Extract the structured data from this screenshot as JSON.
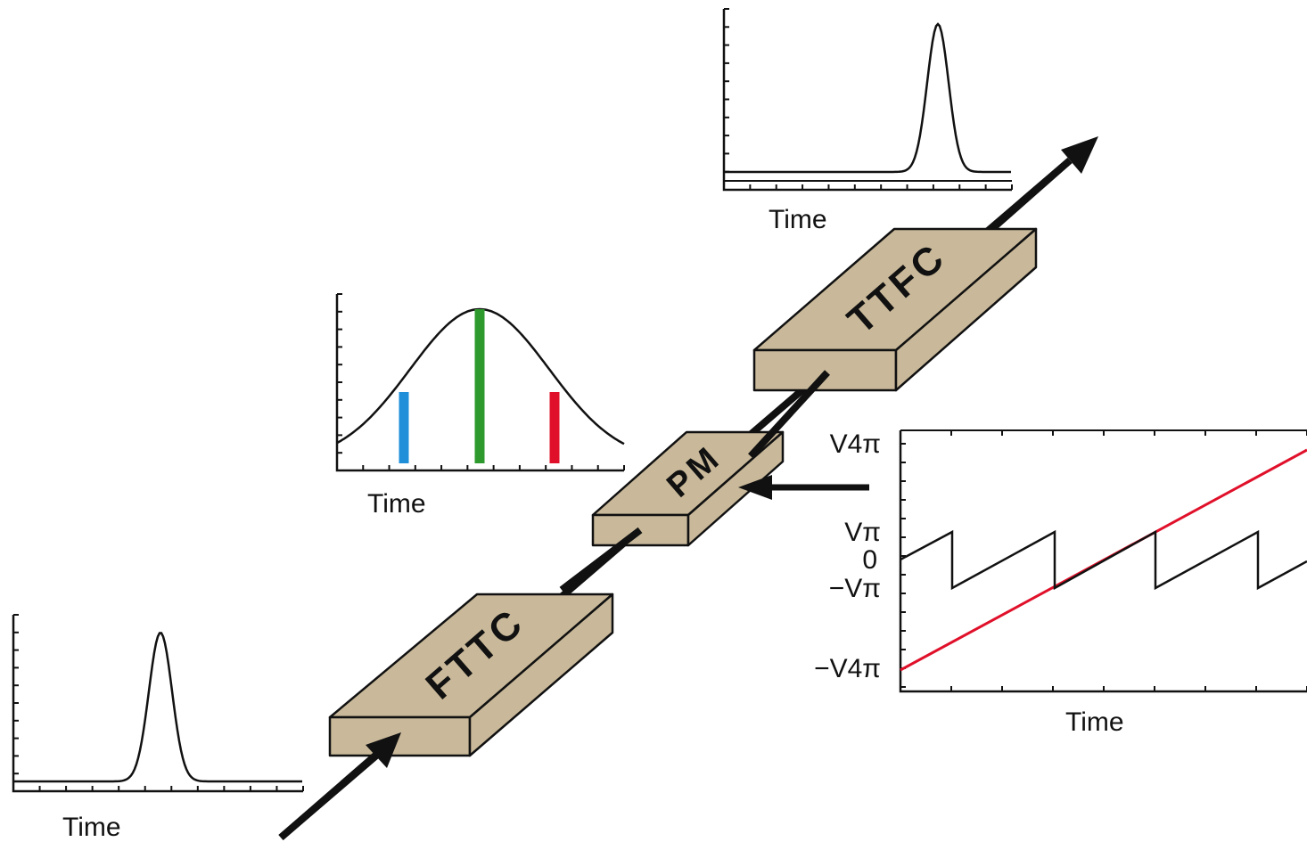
{
  "blocks": [
    {
      "label": "FTTC"
    },
    {
      "label": "PM"
    },
    {
      "label": "TTFC"
    }
  ],
  "plots": [
    {
      "xlabel": "Time"
    },
    {
      "xlabel": "Time"
    },
    {
      "xlabel": "Time"
    }
  ],
  "voltage_plot": {
    "xlabel": "Time",
    "ylabels": [
      "V4π",
      "Vπ",
      "0",
      "−Vπ",
      "−V4π"
    ]
  }
}
